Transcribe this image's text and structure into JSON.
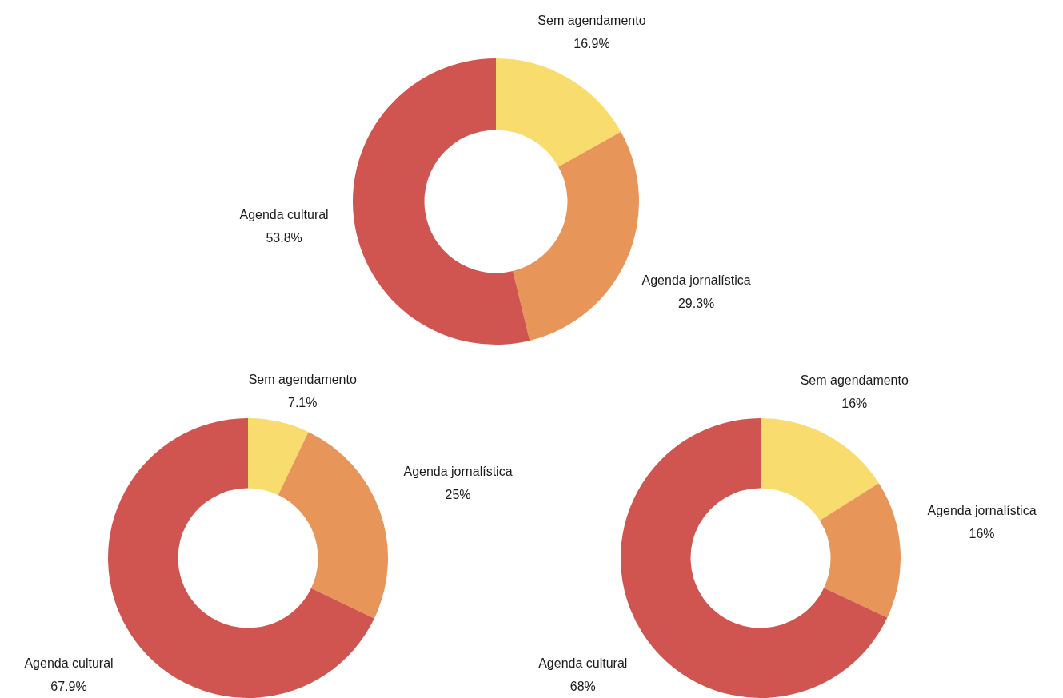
{
  "chart_data": [
    {
      "type": "donut",
      "categories": [
        "Sem agendamento",
        "Agenda jornalística",
        "Agenda cultural"
      ],
      "values": [
        16.9,
        29.3,
        53.8
      ],
      "value_labels": [
        "16.9%",
        "29.3%",
        "53.8%"
      ],
      "colors": [
        "#f8dc6e",
        "#e8955a",
        "#d05550"
      ]
    },
    {
      "type": "donut",
      "categories": [
        "Sem agendamento",
        "Agenda jornalística",
        "Agenda cultural"
      ],
      "values": [
        7.1,
        25,
        67.9
      ],
      "value_labels": [
        "7.1%",
        "25%",
        "67.9%"
      ],
      "colors": [
        "#f8dc6e",
        "#e8955a",
        "#d05550"
      ]
    },
    {
      "type": "donut",
      "categories": [
        "Sem agendamento",
        "Agenda jornalística",
        "Agenda cultural"
      ],
      "values": [
        16,
        16,
        68
      ],
      "value_labels": [
        "16%",
        "16%",
        "68%"
      ],
      "colors": [
        "#f8dc6e",
        "#e8955a",
        "#d05550"
      ]
    }
  ]
}
